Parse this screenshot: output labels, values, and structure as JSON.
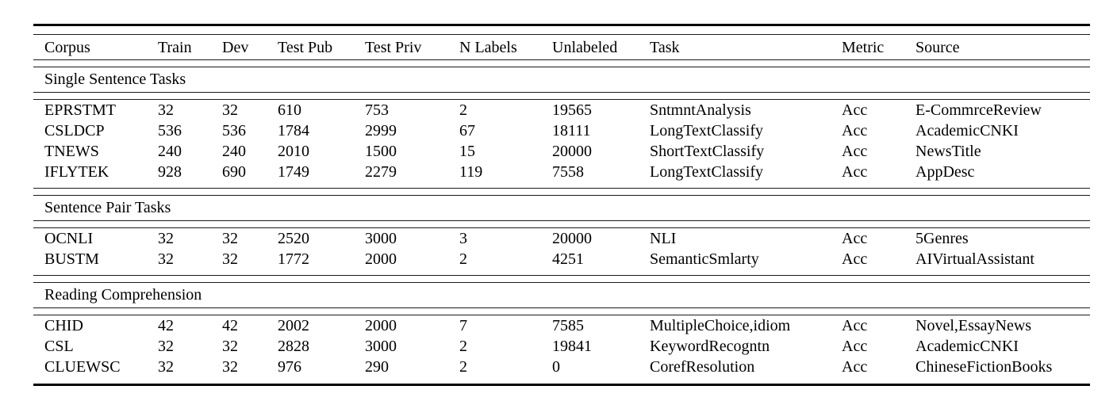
{
  "table": {
    "columns": {
      "corpus": "Corpus",
      "train": "Train",
      "dev": "Dev",
      "test_pub": "Test Pub",
      "test_priv": "Test Priv",
      "n_labels": "N Labels",
      "unlabeled": "Unlabeled",
      "task": "Task",
      "metric": "Metric",
      "source": "Source"
    },
    "sections": [
      {
        "title": "Single Sentence Tasks",
        "rows": [
          [
            "EPRSTMT",
            "32",
            "32",
            "610",
            "753",
            "2",
            "19565",
            "SntmntAnalysis",
            "Acc",
            "E-CommrceReview"
          ],
          [
            "CSLDCP",
            "536",
            "536",
            "1784",
            "2999",
            "67",
            "18111",
            "LongTextClassify",
            "Acc",
            "AcademicCNKI"
          ],
          [
            "TNEWS",
            "240",
            "240",
            "2010",
            "1500",
            "15",
            "20000",
            "ShortTextClassify",
            "Acc",
            "NewsTitle"
          ],
          [
            "IFLYTEK",
            "928",
            "690",
            "1749",
            "2279",
            "119",
            "7558",
            "LongTextClassify",
            "Acc",
            "AppDesc"
          ]
        ]
      },
      {
        "title": "Sentence Pair Tasks",
        "rows": [
          [
            "OCNLI",
            "32",
            "32",
            "2520",
            "3000",
            "3",
            "20000",
            "NLI",
            "Acc",
            "5Genres"
          ],
          [
            "BUSTM",
            "32",
            "32",
            "1772",
            "2000",
            "2",
            "4251",
            "SemanticSmlarty",
            "Acc",
            "AIVirtualAssistant"
          ]
        ]
      },
      {
        "title": "Reading Comprehension",
        "rows": [
          [
            "CHID",
            "42",
            "42",
            "2002",
            "2000",
            "7",
            "7585",
            "MultipleChoice,idiom",
            "Acc",
            "Novel,EssayNews"
          ],
          [
            "CSL",
            "32",
            "32",
            "2828",
            "3000",
            "2",
            "19841",
            "KeywordRecogntn",
            "Acc",
            "AcademicCNKI"
          ],
          [
            "CLUEWSC",
            "32",
            "32",
            "976",
            "290",
            "2",
            "0",
            "CorefResolution",
            "Acc",
            "ChineseFictionBooks"
          ]
        ]
      }
    ]
  },
  "colors": {
    "text": "#000000",
    "rule": "#000000",
    "background": "#ffffff"
  }
}
